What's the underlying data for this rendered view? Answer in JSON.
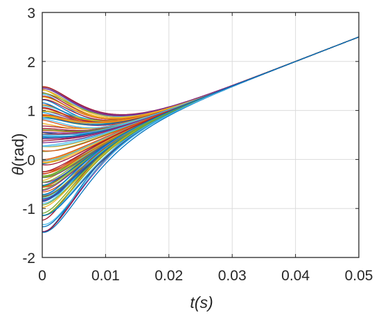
{
  "chart_data": {
    "type": "line",
    "title": "",
    "xlabel": "t(s)",
    "ylabel_symbol": "θ",
    "ylabel_unit": "(rad)",
    "xlim": [
      0,
      0.05
    ],
    "ylim": [
      -2,
      3
    ],
    "xticks": [
      0,
      0.01,
      0.02,
      0.03,
      0.04,
      0.05
    ],
    "xtick_labels": [
      "0",
      "0.01",
      "0.02",
      "0.03",
      "0.04",
      "0.05"
    ],
    "yticks": [
      -2,
      -1,
      0,
      1,
      2,
      3
    ],
    "ytick_labels": [
      "-2",
      "-1",
      "0",
      "1",
      "2",
      "3"
    ],
    "grid": true,
    "legend": "none",
    "series_count": 120,
    "initial_value_range": [
      -1.5,
      1.5
    ],
    "steady_state": {
      "x": [
        0.02,
        0.05
      ],
      "y": [
        1.0,
        2.5
      ]
    },
    "series_colors": [
      "#0072bd",
      "#d95319",
      "#edb120",
      "#7e2f8e",
      "#77ac30",
      "#4dbeee",
      "#a2142f"
    ]
  }
}
